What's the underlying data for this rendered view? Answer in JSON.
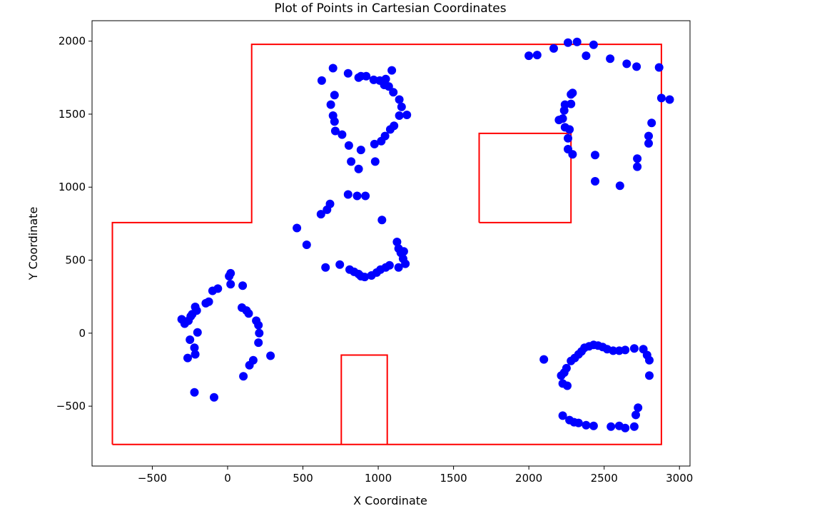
{
  "chart_data": {
    "type": "scatter",
    "title": "Plot of Points in Cartesian Coordinates",
    "xlabel": "X Coordinate",
    "ylabel": "Y Coordinate",
    "xlim": [
      -900,
      3070
    ],
    "ylim": [
      -910,
      2140
    ],
    "xticks": [
      -500,
      0,
      500,
      1000,
      1500,
      2000,
      2500,
      3000
    ],
    "xtick_labels": [
      "−500",
      "0",
      "500",
      "1000",
      "1500",
      "2000",
      "2500",
      "3000"
    ],
    "yticks": [
      -500,
      0,
      500,
      1000,
      1500,
      2000
    ],
    "ytick_labels": [
      "−500",
      "0",
      "500",
      "1000",
      "1500",
      "2000"
    ],
    "grid": false,
    "colors": {
      "points": "#0000ff",
      "outline": "#ff0000",
      "axes": "#000000"
    },
    "outline_polygons": [
      [
        [
          -765,
          -762
        ],
        [
          -765,
          757
        ],
        [
          160,
          757
        ],
        [
          160,
          1978
        ],
        [
          2880,
          1978
        ],
        [
          2880,
          -762
        ],
        [
          -765,
          -762
        ]
      ],
      [
        [
          1670,
          757
        ],
        [
          1670,
          1368
        ],
        [
          2280,
          1368
        ],
        [
          2280,
          757
        ],
        [
          1670,
          757
        ]
      ],
      [
        [
          755,
          -762
        ],
        [
          755,
          -150
        ],
        [
          1060,
          -150
        ],
        [
          1060,
          -762
        ]
      ]
    ],
    "points": [
      [
        -305,
        95
      ],
      [
        -285,
        65
      ],
      [
        -260,
        85
      ],
      [
        -245,
        115
      ],
      [
        -235,
        130
      ],
      [
        -205,
        155
      ],
      [
        -215,
        180
      ],
      [
        -145,
        205
      ],
      [
        -125,
        215
      ],
      [
        -100,
        290
      ],
      [
        -65,
        305
      ],
      [
        10,
        390
      ],
      [
        20,
        410
      ],
      [
        20,
        335
      ],
      [
        100,
        325
      ],
      [
        95,
        175
      ],
      [
        125,
        155
      ],
      [
        140,
        135
      ],
      [
        190,
        85
      ],
      [
        205,
        55
      ],
      [
        210,
        0
      ],
      [
        205,
        -65
      ],
      [
        170,
        -185
      ],
      [
        145,
        -220
      ],
      [
        105,
        -295
      ],
      [
        285,
        -155
      ],
      [
        -200,
        5
      ],
      [
        -250,
        -45
      ],
      [
        -220,
        -100
      ],
      [
        -215,
        -145
      ],
      [
        -265,
        -170
      ],
      [
        -220,
        -405
      ],
      [
        -90,
        -440
      ],
      [
        460,
        720
      ],
      [
        525,
        605
      ],
      [
        620,
        815
      ],
      [
        660,
        845
      ],
      [
        680,
        885
      ],
      [
        800,
        950
      ],
      [
        860,
        940
      ],
      [
        915,
        940
      ],
      [
        1025,
        775
      ],
      [
        650,
        450
      ],
      [
        745,
        470
      ],
      [
        810,
        435
      ],
      [
        840,
        420
      ],
      [
        870,
        405
      ],
      [
        885,
        390
      ],
      [
        910,
        385
      ],
      [
        955,
        395
      ],
      [
        990,
        415
      ],
      [
        1015,
        435
      ],
      [
        1050,
        450
      ],
      [
        1075,
        465
      ],
      [
        1135,
        450
      ],
      [
        1125,
        625
      ],
      [
        1135,
        580
      ],
      [
        1150,
        550
      ],
      [
        1170,
        560
      ],
      [
        1165,
        510
      ],
      [
        1180,
        475
      ],
      [
        625,
        1730
      ],
      [
        700,
        1815
      ],
      [
        800,
        1780
      ],
      [
        870,
        1750
      ],
      [
        885,
        1760
      ],
      [
        920,
        1760
      ],
      [
        970,
        1735
      ],
      [
        1010,
        1730
      ],
      [
        1050,
        1740
      ],
      [
        1040,
        1700
      ],
      [
        1070,
        1690
      ],
      [
        1090,
        1800
      ],
      [
        1100,
        1650
      ],
      [
        1140,
        1600
      ],
      [
        1155,
        1550
      ],
      [
        1190,
        1495
      ],
      [
        1140,
        1490
      ],
      [
        1105,
        1420
      ],
      [
        1080,
        1395
      ],
      [
        1045,
        1350
      ],
      [
        1020,
        1315
      ],
      [
        975,
        1295
      ],
      [
        885,
        1255
      ],
      [
        805,
        1285
      ],
      [
        760,
        1360
      ],
      [
        715,
        1385
      ],
      [
        710,
        1450
      ],
      [
        700,
        1490
      ],
      [
        685,
        1565
      ],
      [
        710,
        1630
      ],
      [
        820,
        1175
      ],
      [
        870,
        1125
      ],
      [
        980,
        1175
      ],
      [
        2000,
        1900
      ],
      [
        2055,
        1905
      ],
      [
        2165,
        1950
      ],
      [
        2260,
        1990
      ],
      [
        2320,
        1995
      ],
      [
        2380,
        1900
      ],
      [
        2430,
        1975
      ],
      [
        2540,
        1880
      ],
      [
        2650,
        1845
      ],
      [
        2715,
        1825
      ],
      [
        2865,
        1820
      ],
      [
        2880,
        1610
      ],
      [
        2935,
        1600
      ],
      [
        2815,
        1440
      ],
      [
        2795,
        1350
      ],
      [
        2795,
        1300
      ],
      [
        2720,
        1195
      ],
      [
        2720,
        1140
      ],
      [
        2605,
        1010
      ],
      [
        2440,
        1040
      ],
      [
        2440,
        1220
      ],
      [
        2290,
        1225
      ],
      [
        2260,
        1260
      ],
      [
        2260,
        1335
      ],
      [
        2240,
        1410
      ],
      [
        2270,
        1395
      ],
      [
        2200,
        1460
      ],
      [
        2225,
        1470
      ],
      [
        2235,
        1525
      ],
      [
        2240,
        1565
      ],
      [
        2280,
        1570
      ],
      [
        2280,
        1635
      ],
      [
        2290,
        1645
      ],
      [
        2100,
        -180
      ],
      [
        2215,
        -290
      ],
      [
        2235,
        -270
      ],
      [
        2250,
        -240
      ],
      [
        2280,
        -190
      ],
      [
        2305,
        -170
      ],
      [
        2330,
        -145
      ],
      [
        2350,
        -125
      ],
      [
        2370,
        -100
      ],
      [
        2400,
        -90
      ],
      [
        2430,
        -80
      ],
      [
        2460,
        -85
      ],
      [
        2490,
        -95
      ],
      [
        2520,
        -110
      ],
      [
        2560,
        -120
      ],
      [
        2600,
        -120
      ],
      [
        2640,
        -115
      ],
      [
        2700,
        -105
      ],
      [
        2760,
        -110
      ],
      [
        2785,
        -150
      ],
      [
        2800,
        -185
      ],
      [
        2800,
        -290
      ],
      [
        2725,
        -510
      ],
      [
        2710,
        -560
      ],
      [
        2700,
        -640
      ],
      [
        2640,
        -650
      ],
      [
        2600,
        -635
      ],
      [
        2545,
        -640
      ],
      [
        2430,
        -635
      ],
      [
        2380,
        -630
      ],
      [
        2330,
        -615
      ],
      [
        2300,
        -610
      ],
      [
        2270,
        -595
      ],
      [
        2225,
        -565
      ],
      [
        2225,
        -345
      ],
      [
        2255,
        -360
      ]
    ]
  }
}
